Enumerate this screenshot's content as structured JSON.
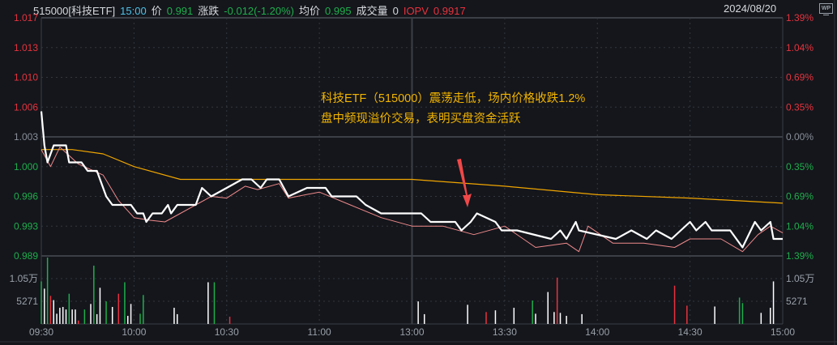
{
  "header": {
    "code_name": "515000[科技ETF]",
    "time": "15:00",
    "price_label": "价",
    "price": "0.991",
    "change_label": "涨跌",
    "change": "-0.012(-1.20%)",
    "avg_label": "均价",
    "avg": "0.995",
    "volume_label": "成交量",
    "volume": "0",
    "iopv_label": "IOPV",
    "iopv": "0.9917",
    "date": "2024/08/20",
    "wp_icon": "WP"
  },
  "annotation": {
    "line1": "科技ETF（515000）震荡走低，场内价格收跌1.2%",
    "line2": "盘中频现溢价交易，表明买盘资金活跃",
    "arrow_icon": "red-arrow-down"
  },
  "colors": {
    "background": "#14161c",
    "up": "#e8323c",
    "down": "#1fae4b",
    "price_line": "#ffffff",
    "iopv_line": "#f08a8a",
    "avg_line": "#f0a500",
    "annotation": "#f2b400"
  },
  "chart_data": {
    "type": "line",
    "prev_close": 1.003,
    "ylim": [
      0.989,
      1.017
    ],
    "y_ticks_left": [
      "1.017",
      "1.013",
      "1.010",
      "1.006",
      "1.003",
      "1.000",
      "0.996",
      "0.993",
      "0.989"
    ],
    "y_ticks_right": [
      "1.39%",
      "1.04%",
      "0.69%",
      "0.35%",
      "0.00%",
      "0.35%",
      "0.69%",
      "1.04%",
      "1.39%"
    ],
    "x_ticks": [
      "09:30",
      "10:00",
      "10:30",
      "11:00",
      "13:00",
      "13:30",
      "14:00",
      "14:30",
      "15:00"
    ],
    "volume_ticks": [
      "1.05万",
      "5271"
    ],
    "volume_ylim": [
      0,
      15800
    ],
    "grid": true,
    "series": [
      {
        "key": "price",
        "points": [
          [
            "09:30",
            1.006
          ],
          [
            "09:31",
            1.002
          ],
          [
            "09:32",
            1.0
          ],
          [
            "09:34",
            1.002
          ],
          [
            "09:38",
            1.002
          ],
          [
            "09:39",
            1.0
          ],
          [
            "09:43",
            1.0
          ],
          [
            "09:45",
            0.999
          ],
          [
            "09:48",
            0.999
          ],
          [
            "09:51",
            0.996
          ],
          [
            "09:53",
            0.995
          ],
          [
            "09:56",
            0.995
          ],
          [
            "09:59",
            0.995
          ],
          [
            "10:01",
            0.994
          ],
          [
            "10:03",
            0.994
          ],
          [
            "10:04",
            0.993
          ],
          [
            "10:06",
            0.994
          ],
          [
            "10:09",
            0.994
          ],
          [
            "10:11",
            0.995
          ],
          [
            "10:12",
            0.994
          ],
          [
            "10:14",
            0.995
          ],
          [
            "10:20",
            0.995
          ],
          [
            "10:22",
            0.997
          ],
          [
            "10:25",
            0.996
          ],
          [
            "10:30",
            0.997
          ],
          [
            "10:35",
            0.998
          ],
          [
            "10:38",
            0.998
          ],
          [
            "10:41",
            0.997
          ],
          [
            "10:43",
            0.998
          ],
          [
            "10:47",
            0.998
          ],
          [
            "10:50",
            0.996
          ],
          [
            "10:56",
            0.997
          ],
          [
            "11:02",
            0.997
          ],
          [
            "11:04",
            0.996
          ],
          [
            "11:12",
            0.996
          ],
          [
            "11:15",
            0.995
          ],
          [
            "11:20",
            0.994
          ],
          [
            "11:28",
            0.994
          ],
          [
            "13:03",
            0.994
          ],
          [
            "13:06",
            0.993
          ],
          [
            "13:14",
            0.993
          ],
          [
            "13:16",
            0.992
          ],
          [
            "13:19",
            0.993
          ],
          [
            "13:21",
            0.994
          ],
          [
            "13:27",
            0.993
          ],
          [
            "13:29",
            0.992
          ],
          [
            "13:34",
            0.992
          ],
          [
            "13:45",
            0.991
          ],
          [
            "13:48",
            0.992
          ],
          [
            "13:50",
            0.991
          ],
          [
            "13:53",
            0.993
          ],
          [
            "13:54",
            0.992
          ],
          [
            "14:06",
            0.991
          ],
          [
            "14:11",
            0.992
          ],
          [
            "14:16",
            0.991
          ],
          [
            "14:19",
            0.992
          ],
          [
            "14:24",
            0.991
          ],
          [
            "14:30",
            0.993
          ],
          [
            "14:32",
            0.992
          ],
          [
            "14:35",
            0.993
          ],
          [
            "14:37",
            0.992
          ],
          [
            "14:43",
            0.992
          ],
          [
            "14:47",
            0.99
          ],
          [
            "14:51",
            0.993
          ],
          [
            "14:53",
            0.992
          ],
          [
            "14:56",
            0.993
          ],
          [
            "14:57",
            0.991
          ],
          [
            "15:00",
            0.991
          ]
        ]
      },
      {
        "key": "iopv",
        "points": [
          [
            "09:30",
            1.0015
          ],
          [
            "09:33",
            0.9995
          ],
          [
            "09:36",
            1.0018
          ],
          [
            "09:42",
            0.9998
          ],
          [
            "09:50",
            0.9985
          ],
          [
            "09:55",
            0.9955
          ],
          [
            "10:00",
            0.9935
          ],
          [
            "10:05",
            0.9932
          ],
          [
            "10:10",
            0.993
          ],
          [
            "10:15",
            0.994
          ],
          [
            "10:20",
            0.995
          ],
          [
            "10:25",
            0.996
          ],
          [
            "10:30",
            0.9958
          ],
          [
            "10:36",
            0.9972
          ],
          [
            "10:40",
            0.9968
          ],
          [
            "10:47",
            0.9975
          ],
          [
            "10:50",
            0.9958
          ],
          [
            "11:00",
            0.9965
          ],
          [
            "11:10",
            0.995
          ],
          [
            "11:20",
            0.9935
          ],
          [
            "11:30",
            0.9925
          ],
          [
            "13:10",
            0.9925
          ],
          [
            "13:20",
            0.9915
          ],
          [
            "13:30",
            0.9925
          ],
          [
            "13:40",
            0.99
          ],
          [
            "13:50",
            0.9905
          ],
          [
            "13:54",
            0.9895
          ],
          [
            "13:57",
            0.9925
          ],
          [
            "14:05",
            0.9905
          ],
          [
            "14:15",
            0.9905
          ],
          [
            "14:25",
            0.99
          ],
          [
            "14:30",
            0.991
          ],
          [
            "14:40",
            0.991
          ],
          [
            "14:47",
            0.9895
          ],
          [
            "14:52",
            0.9915
          ],
          [
            "14:56",
            0.9925
          ],
          [
            "15:00",
            0.9917
          ]
        ]
      },
      {
        "key": "avg",
        "points": [
          [
            "09:30",
            1.0015
          ],
          [
            "09:40",
            1.0015
          ],
          [
            "09:50",
            1.001
          ],
          [
            "10:00",
            0.9995
          ],
          [
            "10:15",
            0.998
          ],
          [
            "10:30",
            0.998
          ],
          [
            "11:00",
            0.998
          ],
          [
            "11:30",
            0.998
          ],
          [
            "13:30",
            0.9972
          ],
          [
            "14:00",
            0.9962
          ],
          [
            "14:30",
            0.9958
          ],
          [
            "15:00",
            0.9952
          ]
        ]
      }
    ],
    "volume": [
      [
        "09:30",
        10000,
        "down"
      ],
      [
        "09:31",
        8300,
        "flat"
      ],
      [
        "09:32",
        15600,
        "down"
      ],
      [
        "09:33",
        6600,
        "up"
      ],
      [
        "09:34",
        5600,
        "flat"
      ],
      [
        "09:35",
        2400,
        "flat"
      ],
      [
        "09:36",
        3800,
        "flat"
      ],
      [
        "09:37",
        4000,
        "flat"
      ],
      [
        "09:38",
        3400,
        "flat"
      ],
      [
        "09:39",
        7100,
        "down"
      ],
      [
        "09:40",
        3400,
        "flat"
      ],
      [
        "09:41",
        3400,
        "flat"
      ],
      [
        "09:42",
        800,
        "up"
      ],
      [
        "09:44",
        3400,
        "down"
      ],
      [
        "09:46",
        4700,
        "flat"
      ],
      [
        "09:47",
        13700,
        "down"
      ],
      [
        "09:48",
        2300,
        "flat"
      ],
      [
        "09:49",
        8500,
        "flat"
      ],
      [
        "09:51",
        5300,
        "down"
      ],
      [
        "09:53",
        4000,
        "flat"
      ],
      [
        "09:55",
        7100,
        "up"
      ],
      [
        "09:57",
        9800,
        "down"
      ],
      [
        "09:58",
        1900,
        "flat"
      ],
      [
        "09:59",
        4700,
        "flat"
      ],
      [
        "10:02",
        2400,
        "down"
      ],
      [
        "10:03",
        6800,
        "down"
      ],
      [
        "10:13",
        3800,
        "flat"
      ],
      [
        "10:14",
        2300,
        "flat"
      ],
      [
        "10:24",
        9800,
        "flat"
      ],
      [
        "10:26",
        9800,
        "down"
      ],
      [
        "10:31",
        1700,
        "up"
      ],
      [
        "13:02",
        5300,
        "flat"
      ],
      [
        "13:04",
        2300,
        "flat"
      ],
      [
        "13:18",
        4500,
        "flat"
      ],
      [
        "13:24",
        2800,
        "up"
      ],
      [
        "13:27",
        3200,
        "flat"
      ],
      [
        "13:33",
        3800,
        "flat"
      ],
      [
        "13:39",
        5500,
        "down"
      ],
      [
        "13:40",
        2400,
        "flat"
      ],
      [
        "13:44",
        7500,
        "flat"
      ],
      [
        "13:46",
        2800,
        "flat"
      ],
      [
        "13:47",
        10900,
        "up"
      ],
      [
        "13:48",
        2600,
        "flat"
      ],
      [
        "13:50",
        1900,
        "flat"
      ],
      [
        "13:55",
        2300,
        "flat"
      ],
      [
        "14:25",
        9000,
        "up"
      ],
      [
        "14:29",
        4300,
        "up"
      ],
      [
        "14:38",
        4100,
        "flat"
      ],
      [
        "14:46",
        6200,
        "down"
      ],
      [
        "14:47",
        4900,
        "down"
      ],
      [
        "14:53",
        2600,
        "flat"
      ],
      [
        "14:56",
        3800,
        "flat"
      ],
      [
        "14:57",
        10000,
        "flat"
      ]
    ]
  }
}
